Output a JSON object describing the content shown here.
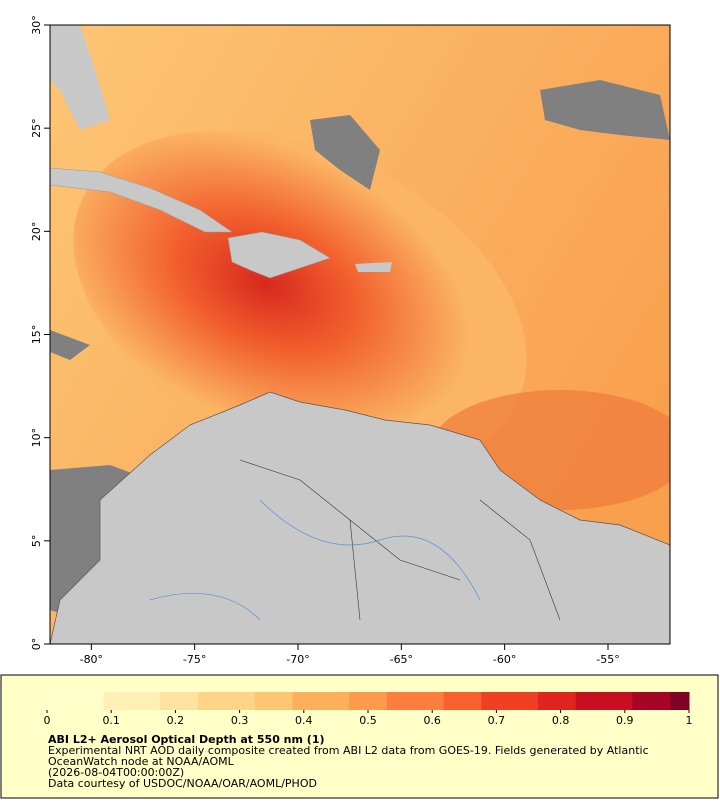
{
  "map": {
    "xlim": [
      -82,
      -52
    ],
    "ylim": [
      0,
      30
    ],
    "lon_ticks": [
      {
        "value": -80,
        "label": "-80°"
      },
      {
        "value": -75,
        "label": "-75°"
      },
      {
        "value": -70,
        "label": "-70°"
      },
      {
        "value": -65,
        "label": "-65°"
      },
      {
        "value": -60,
        "label": "-60°"
      },
      {
        "value": -55,
        "label": "-55°"
      }
    ],
    "lat_ticks": [
      {
        "value": 0,
        "label": "0°"
      },
      {
        "value": 5,
        "label": "5°"
      },
      {
        "value": 10,
        "label": "10°"
      },
      {
        "value": 15,
        "label": "15°"
      },
      {
        "value": 20,
        "label": "20°"
      },
      {
        "value": 25,
        "label": "25°"
      },
      {
        "value": 30,
        "label": "30°"
      }
    ]
  },
  "colorbar": {
    "range": [
      0,
      1
    ],
    "ticks": [
      0,
      0.1,
      0.2,
      0.3,
      0.4,
      0.5,
      0.6,
      0.7,
      0.8,
      0.9,
      1
    ],
    "colors": [
      "#ffffcc",
      "#fff0b8",
      "#ffe2a0",
      "#fed488",
      "#fec670",
      "#fdb05c",
      "#fd9a4c",
      "#fc7e3e",
      "#f9602e",
      "#ef4024",
      "#e0241e",
      "#c80f22",
      "#a60526",
      "#800026"
    ]
  },
  "caption": {
    "title": "ABI L2+ Aerosol Optical Depth at 550 nm (1)",
    "lines": [
      "Experimental NRT AOD daily composite created from ABI L2 data from GOES-19. Fields generated by Atlantic",
      "OceanWatch node at NOAA/AOML",
      "(2026-08-04T00:00:00Z)",
      "Data courtesy of USDOC/NOAA/OAR/AOML/PHOD"
    ]
  }
}
